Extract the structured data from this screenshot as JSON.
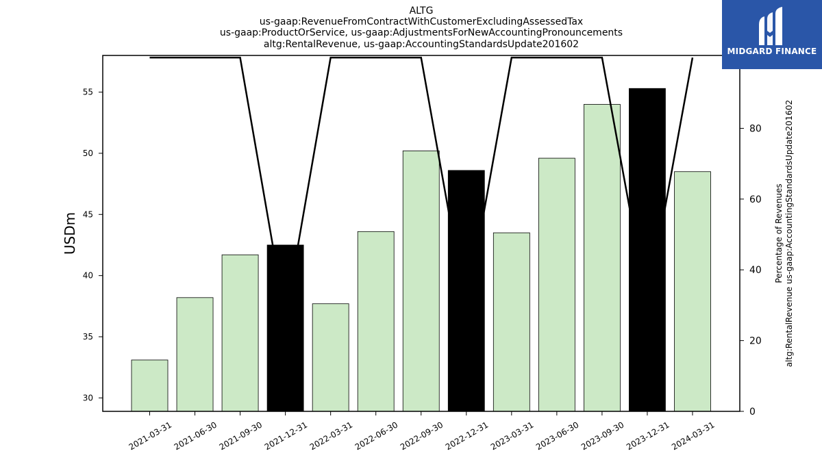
{
  "chart_data": {
    "type": "bar",
    "title_lines": [
      "ALTG",
      "us-gaap:RevenueFromContractWithCustomerExcludingAssessedTax",
      "us-gaap:ProductOrService, us-gaap:AdjustmentsForNewAccountingPronouncements",
      "altg:RentalRevenue, us-gaap:AccountingStandardsUpdate201602"
    ],
    "ylabel": "USDm",
    "y2label_lines": [
      "Percentage of Revenues",
      "altg:RentalRevenue us-gaap:AccountingStandardsUpdate201602"
    ],
    "categories": [
      "2021-03-31",
      "2021-06-30",
      "2021-09-30",
      "2021-12-31",
      "2022-03-31",
      "2022-06-30",
      "2022-09-30",
      "2022-12-31",
      "2023-03-31",
      "2023-06-30",
      "2023-09-30",
      "2023-12-31",
      "2024-03-31"
    ],
    "values": [
      33.1,
      38.2,
      41.7,
      42.5,
      37.7,
      43.6,
      50.2,
      48.6,
      43.5,
      49.6,
      54.0,
      55.3,
      48.5
    ],
    "bar_colors": [
      "#cce9c6",
      "#cce9c6",
      "#cce9c6",
      "#000000",
      "#cce9c6",
      "#cce9c6",
      "#cce9c6",
      "#000000",
      "#cce9c6",
      "#cce9c6",
      "#cce9c6",
      "#000000",
      "#cce9c6"
    ],
    "ylim": [
      28.9,
      58.0
    ],
    "yticks": [
      30,
      35,
      40,
      45,
      50,
      55
    ],
    "line_series": {
      "values": [
        100,
        100,
        100,
        26.4,
        100,
        100,
        100,
        28.5,
        100,
        100,
        100,
        30.1,
        100
      ],
      "color": "#000000"
    },
    "y2lim": [
      0,
      100.6
    ],
    "y2ticks": [
      0,
      20,
      40,
      60,
      80,
      100
    ],
    "grid": false,
    "legend": "none"
  },
  "logo": {
    "text": "MIDGARD FINANCE",
    "background": "#2a56a8"
  }
}
